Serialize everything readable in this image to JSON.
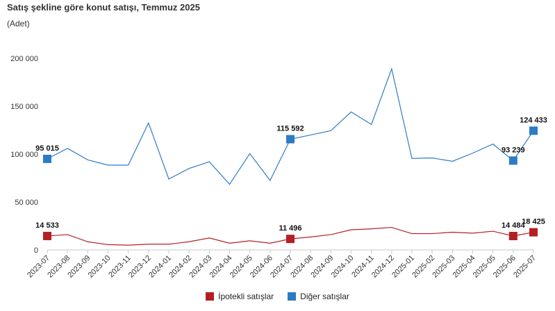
{
  "title": "Satış şekline göre konut satışı, Temmuz 2025",
  "subtitle": "(Adet)",
  "chart_data": {
    "type": "line",
    "categories": [
      "2023-07",
      "2023-08",
      "2023-09",
      "2023-10",
      "2023-11",
      "2023-12",
      "2024-01",
      "2024-02",
      "2024-03",
      "2024-04",
      "2024-05",
      "2024-06",
      "2024-07",
      "2024-08",
      "2024-09",
      "2024-10",
      "2024-11",
      "2024-12",
      "2025-01",
      "2025-02",
      "2025-03",
      "2025-04",
      "2025-05",
      "2025-06",
      "2025-07"
    ],
    "ylim": [
      0,
      200000
    ],
    "yticks": [
      0,
      50000,
      100000,
      150000,
      200000
    ],
    "ytick_labels": [
      "0",
      "50 000",
      "100 000",
      "150 000",
      "200 000"
    ],
    "grid": false,
    "legend_position": "bottom-center",
    "series": [
      {
        "name": "İpotekli satışlar",
        "color": "#b41f24",
        "values": [
          14533,
          16000,
          8500,
          5500,
          5000,
          6000,
          6000,
          8500,
          12500,
          7000,
          9500,
          7000,
          11496,
          13500,
          16000,
          21000,
          22000,
          23500,
          17000,
          17000,
          18500,
          17500,
          19500,
          14484,
          18425
        ],
        "marked": [
          {
            "index": 0,
            "label": "14 533"
          },
          {
            "index": 12,
            "label": "11 496"
          },
          {
            "index": 23,
            "label": "14 484"
          },
          {
            "index": 24,
            "label": "18 425"
          }
        ]
      },
      {
        "name": "Diğer satışlar",
        "color": "#2c7cc4",
        "values": [
          95015,
          106000,
          94000,
          88500,
          88500,
          132500,
          74000,
          85000,
          92000,
          68500,
          100500,
          72500,
          115592,
          120000,
          124500,
          144000,
          131000,
          189000,
          95500,
          96000,
          92500,
          101000,
          110500,
          93239,
          124433
        ],
        "marked": [
          {
            "index": 0,
            "label": "95 015"
          },
          {
            "index": 12,
            "label": "115 592"
          },
          {
            "index": 23,
            "label": "93 239"
          },
          {
            "index": 24,
            "label": "124 433"
          }
        ]
      }
    ]
  }
}
